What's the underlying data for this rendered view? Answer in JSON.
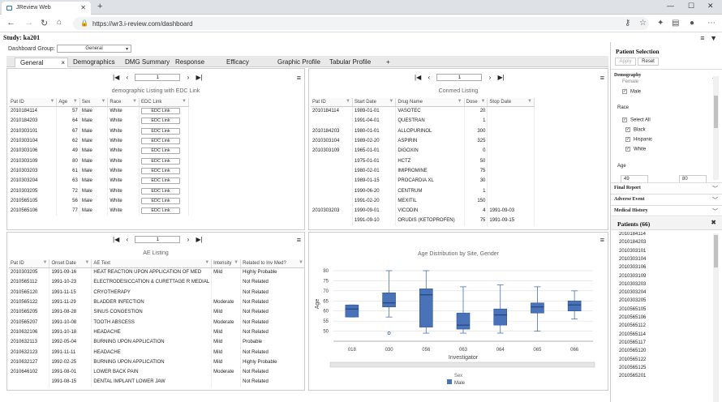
{
  "browser": {
    "tab_title": "JReview Web",
    "url": "https://wr3.i-review.com/dashboard",
    "url_proto": "https://",
    "url_host": "wr3.i-review.com",
    "url_path": "/dashboard"
  },
  "study": {
    "label": "Study: ka201"
  },
  "dashboard_group": {
    "label": "Dashboard Group:",
    "value": "General"
  },
  "tabs": [
    {
      "label": "General",
      "close": "×"
    },
    {
      "label": "Demographics"
    },
    {
      "label": "DMG Summary"
    },
    {
      "label": "Response"
    },
    {
      "label": "Efficacy"
    },
    {
      "label": "Graphic Profile"
    },
    {
      "label": "Tabular Profile"
    },
    {
      "label": "+"
    }
  ],
  "pager": {
    "page": "1"
  },
  "demo": {
    "title": "demographic Listing with EDC Link",
    "headers": [
      "Pat ID",
      "Age",
      "Sex",
      "Race",
      "EDC Link"
    ],
    "rows": [
      [
        "2010184114",
        "57",
        "Male",
        "White",
        "EDC Link"
      ],
      [
        "2010184203",
        "64",
        "Male",
        "White",
        "EDC Link"
      ],
      [
        "2010303101",
        "67",
        "Male",
        "White",
        "EDC Link"
      ],
      [
        "2010303104",
        "62",
        "Male",
        "White",
        "EDC Link"
      ],
      [
        "2010303106",
        "49",
        "Male",
        "White",
        "EDC Link"
      ],
      [
        "2010303109",
        "80",
        "Male",
        "White",
        "EDC Link"
      ],
      [
        "2010303203",
        "61",
        "Male",
        "White",
        "EDC Link"
      ],
      [
        "2010303204",
        "63",
        "Male",
        "White",
        "EDC Link"
      ],
      [
        "2010303205",
        "72",
        "Male",
        "White",
        "EDC Link"
      ],
      [
        "2010565105",
        "56",
        "Male",
        "White",
        "EDC Link"
      ],
      [
        "2010565106",
        "77",
        "Male",
        "White",
        "EDC Link"
      ]
    ]
  },
  "conmed": {
    "title": "Conmed Listing",
    "headers": [
      "Pat ID",
      "Start Date",
      "Drug Name",
      "Dose",
      "Stop Date"
    ],
    "rows": [
      [
        "2010184114",
        "1989-01-01",
        "VASOTEC",
        "20",
        ""
      ],
      [
        "",
        "1991-04-01",
        "QUESTRAN",
        "1",
        ""
      ],
      [
        "2010184203",
        "1980-01-01",
        "ALLOPURINOL",
        "300",
        ""
      ],
      [
        "2010303104",
        "1989-02-20",
        "ASPIRIN",
        "325",
        ""
      ],
      [
        "2010303109",
        "1965-01-01",
        "DIGOXIN",
        "0",
        ""
      ],
      [
        "",
        "1975-01-01",
        "HCTZ",
        "50",
        ""
      ],
      [
        "",
        "1980-02-01",
        "IMIPROMINE",
        "75",
        ""
      ],
      [
        "",
        "1989-01-15",
        "PROCARDIA XL",
        "30",
        ""
      ],
      [
        "",
        "1990-06-20",
        "CENTRUM",
        "1",
        ""
      ],
      [
        "",
        "1991-02-20",
        "MEXITIL",
        "150",
        ""
      ],
      [
        "2010303203",
        "1990-09-01",
        "VICODIN",
        "4",
        "1991-09-03"
      ],
      [
        "",
        "1991-09-10",
        "ORUDIS (KETOPROFEN)",
        "75",
        "1991-09-15"
      ]
    ]
  },
  "ae": {
    "title": "AE Listing",
    "headers": [
      "Pat ID",
      "Onset Date",
      "AE Text",
      "Intensity",
      "Related to Inv Med?"
    ],
    "rows": [
      [
        "2010303205",
        "1991-09-16",
        "HEAT REACTION UPON APPLICATION OF MED",
        "Mild",
        "Highly Probable"
      ],
      [
        "2010565112",
        "1991-10-23",
        "ELECTRODESICCATION & CURETTAGE R MEDIAL",
        "",
        "Not Related"
      ],
      [
        "2010565120",
        "1991-11-15",
        "CRYOTHERAPY",
        "",
        "Not Related"
      ],
      [
        "2010565122",
        "1991-11-29",
        "BLADDER INFECTION",
        "Moderate",
        "Not Related"
      ],
      [
        "2010565205",
        "1991-08-28",
        "SINUS CONGESTION",
        "Mild",
        "Not Related"
      ],
      [
        "2010565207",
        "1991-10-08",
        "TOOTH ABSCESS",
        "Moderate",
        "Not Related"
      ],
      [
        "2010632106",
        "1991-10-18",
        "HEADACHE",
        "Mild",
        "Not Related"
      ],
      [
        "2010632113",
        "1992-05-04",
        "BURNING UPON APPLICATION",
        "Mild",
        "Probable"
      ],
      [
        "2010632123",
        "1991-11-11",
        "HEADACHE",
        "Mild",
        "Not Related"
      ],
      [
        "2010632127",
        "1992-02-25",
        "BURNING UPON APPLICATION",
        "Mild",
        "Highly Probable"
      ],
      [
        "2010646102",
        "1991-08-01",
        "LOWER BACK PAIN",
        "Moderate",
        "Not Related"
      ],
      [
        "",
        "1991-08-15",
        "DENTAL IMPLANT LOWER JAW",
        "",
        "Not Related"
      ]
    ]
  },
  "chart_data": {
    "type": "box",
    "title": "Age Distribution by Site, Gender",
    "xlabel": "Investigator",
    "ylabel": "Age",
    "ylim": [
      45,
      82
    ],
    "yticks": [
      50,
      55,
      60,
      65,
      70,
      75,
      80
    ],
    "categories": [
      "018",
      "030",
      "056",
      "063",
      "064",
      "065",
      "066"
    ],
    "legend_title": "Sex",
    "series": [
      {
        "name": "Male",
        "color": "#4a72b8",
        "boxes": [
          {
            "min": 57,
            "q1": 57,
            "med": 61,
            "q3": 63,
            "max": 63
          },
          {
            "min": 57,
            "q1": 62,
            "med": 64,
            "q3": 69,
            "max": 80,
            "outliers": [
              49
            ]
          },
          {
            "min": 49,
            "q1": 52,
            "med": 68,
            "q3": 71,
            "max": 80
          },
          {
            "min": 49,
            "q1": 51,
            "med": 53,
            "q3": 59,
            "max": 72
          },
          {
            "min": 49,
            "q1": 53,
            "med": 58,
            "q3": 61,
            "max": 73
          },
          {
            "min": 50,
            "q1": 59,
            "med": 62,
            "q3": 64,
            "max": 72
          },
          {
            "min": 56,
            "q1": 60,
            "med": 63,
            "q3": 65,
            "max": 70
          }
        ]
      }
    ]
  },
  "sidebar": {
    "title": "Patient Selection",
    "apply": "Apply",
    "reset": "Reset",
    "demography": "Demography",
    "female": "Female",
    "male": "Male",
    "race": "Race",
    "select_all": "Select All",
    "black": "Black",
    "hispanic": "Hispanic",
    "white": "White",
    "age": "Age",
    "age_min": "49",
    "age_max": "80",
    "sections": [
      "Final Report",
      "Adverse Event",
      "Medical History"
    ],
    "patients_title": "Patients (66)",
    "patients": [
      "2010184114",
      "2010184203",
      "2010303101",
      "2010303104",
      "2010303106",
      "2010303109",
      "2010303203",
      "2010303204",
      "2010303205",
      "2010565105",
      "2010565106",
      "2010565112",
      "2010565114",
      "2010565117",
      "2010565120",
      "2010565122",
      "2010565125",
      "2010565201"
    ]
  }
}
